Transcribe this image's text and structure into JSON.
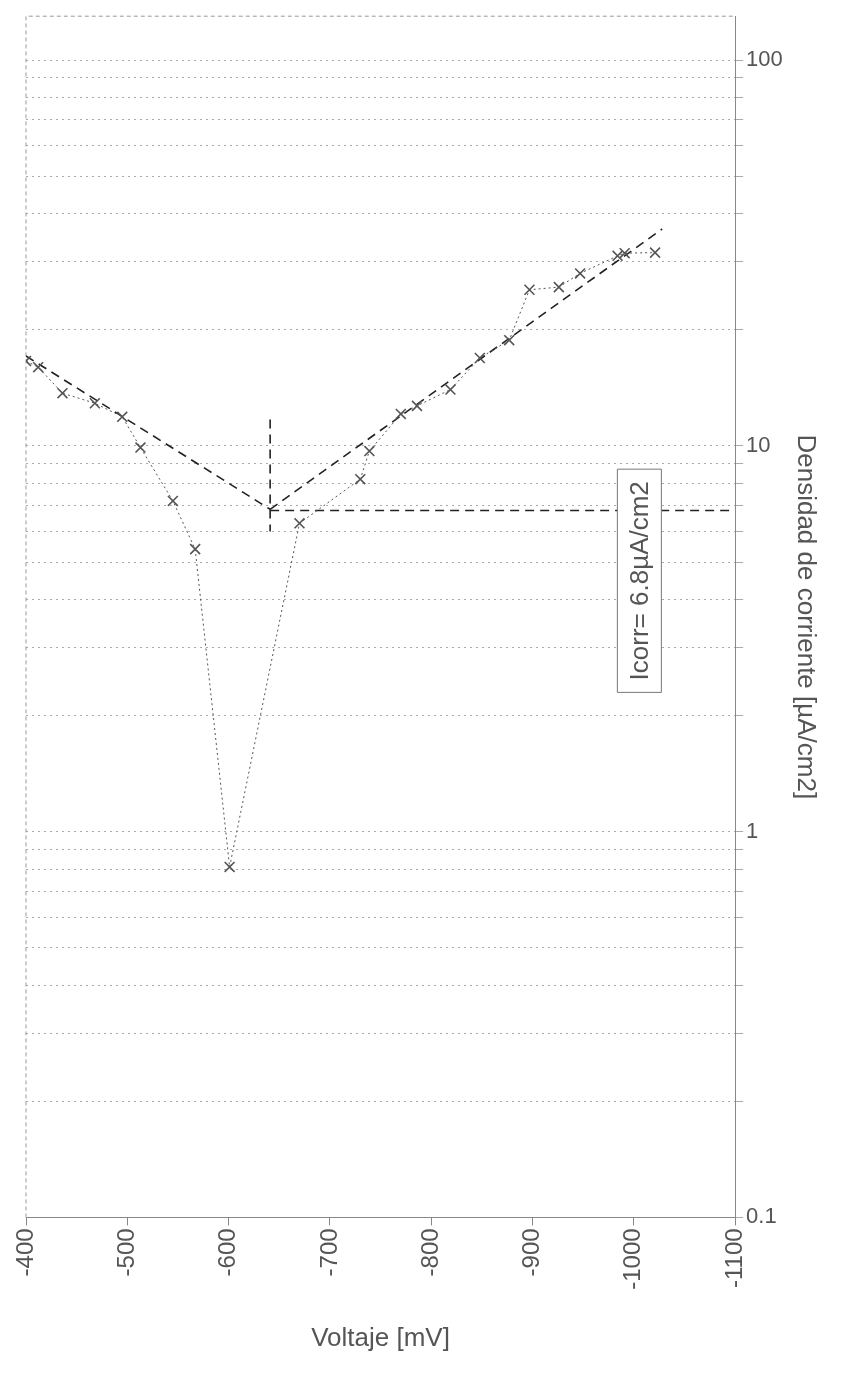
{
  "chart_data": {
    "type": "line",
    "xlabel": "Voltaje [mV]",
    "ylabel": "Densidad de corriente [µA/cm2]",
    "xlim": [
      -400,
      -1100
    ],
    "xticks": [
      -400,
      -500,
      -600,
      -700,
      -800,
      -900,
      -1000,
      -1100
    ],
    "ylim": [
      0.1,
      130
    ],
    "log": "y",
    "yticks": [
      0.1,
      {
        "value": 0.2,
        "label": null
      },
      {
        "value": 0.3,
        "label": null
      },
      {
        "value": 0.4,
        "label": null
      },
      {
        "value": 0.5,
        "label": null
      },
      {
        "value": 0.6,
        "label": null
      },
      {
        "value": 0.7,
        "label": null
      },
      {
        "value": 0.8,
        "label": null
      },
      {
        "value": 0.9,
        "label": null
      },
      1,
      {
        "value": 2,
        "label": null
      },
      {
        "value": 3,
        "label": null
      },
      {
        "value": 4,
        "label": null
      },
      {
        "value": 5,
        "label": null
      },
      {
        "value": 6,
        "label": null
      },
      {
        "value": 7,
        "label": null
      },
      {
        "value": 8,
        "label": null
      },
      {
        "value": 9,
        "label": null
      },
      10,
      {
        "value": 20,
        "label": null
      },
      {
        "value": 30,
        "label": null
      },
      {
        "value": 40,
        "label": null
      },
      {
        "value": 50,
        "label": null
      },
      {
        "value": 60,
        "label": null
      },
      {
        "value": 70,
        "label": null
      },
      {
        "value": 80,
        "label": null
      },
      {
        "value": 90,
        "label": null
      },
      100
    ],
    "grid": "y",
    "legend": false,
    "annotations": [
      "Icorr= 6.8µA/cm2"
    ],
    "series": [
      {
        "color": "#555555",
        "marker": "cross",
        "line_style": "dotted",
        "x": [
          -400,
          -412,
          -436,
          -468,
          -495,
          -513,
          -545,
          -567,
          -601,
          -670,
          -730,
          -739,
          -770,
          -786,
          -819,
          -848,
          -877,
          -897,
          -926,
          -947,
          -984,
          -991,
          -1021
        ],
        "values": [
          16.6,
          16.0,
          13.7,
          12.9,
          11.9,
          9.9,
          7.2,
          5.4,
          0.81,
          6.3,
          8.2,
          9.7,
          12.1,
          12.7,
          14.0,
          16.9,
          18.8,
          25.4,
          25.8,
          28.0,
          31.1,
          31.6,
          31.7
        ]
      },
      {
        "color": "#222222",
        "marker": "none",
        "line_style": "dashed",
        "x": [
          -400,
          -641
        ],
        "values": [
          17.1,
          6.85
        ]
      },
      {
        "color": "#222222",
        "marker": "none",
        "line_style": "dashed",
        "x": [
          -641,
          -1028
        ],
        "values": [
          6.85,
          36.5
        ]
      },
      {
        "color": "#222222",
        "marker": "none",
        "line_style": "dashed",
        "x": [
          -641,
          -641
        ],
        "values": [
          11.7,
          6.0
        ]
      },
      {
        "color": "#222222",
        "marker": "none",
        "line_style": "dashed",
        "x": [
          -641,
          -1100
        ],
        "values": [
          6.8,
          6.8
        ]
      }
    ]
  }
}
